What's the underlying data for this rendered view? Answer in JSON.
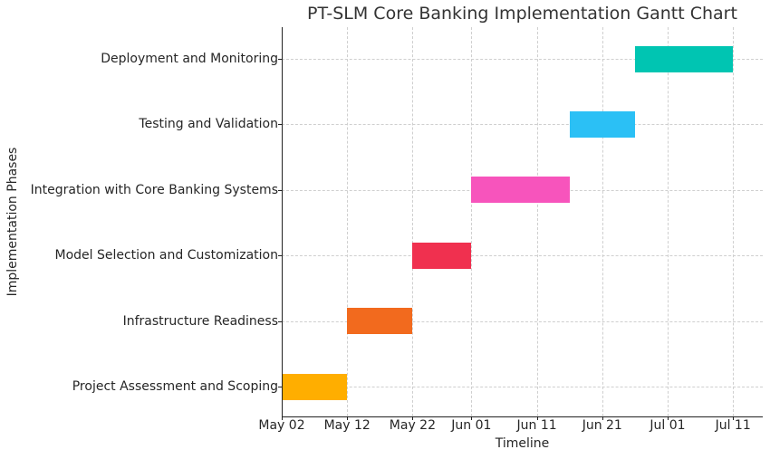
{
  "chart_data": {
    "type": "bar",
    "subtype": "gantt",
    "title": "PT-SLM Core Banking Implementation Gantt Chart",
    "xlabel": "Timeline",
    "ylabel": "Implementation Phases",
    "x_ticks": [
      "May 02",
      "May 12",
      "May 22",
      "Jun 01",
      "Jun 11",
      "Jun 21",
      "Jul 01",
      "Jul 11"
    ],
    "xlim": [
      "May 02",
      "Jul 15"
    ],
    "grid": true,
    "legend": null,
    "tasks": [
      {
        "name": "Project Assessment and Scoping",
        "start": "May 02",
        "end": "May 12",
        "duration_days": 10,
        "color": "#FFAE00"
      },
      {
        "name": "Infrastructure Readiness",
        "start": "May 12",
        "end": "May 22",
        "duration_days": 10,
        "color": "#F26A1E"
      },
      {
        "name": "Model Selection and Customization",
        "start": "May 22",
        "end": "Jun 01",
        "duration_days": 10,
        "color": "#F0304F"
      },
      {
        "name": "Integration with Core Banking Systems",
        "start": "Jun 01",
        "end": "Jun 16",
        "duration_days": 15,
        "color": "#F754BC"
      },
      {
        "name": "Testing and Validation",
        "start": "Jun 16",
        "end": "Jun 26",
        "duration_days": 10,
        "color": "#2BC0F5"
      },
      {
        "name": "Deployment and Monitoring",
        "start": "Jun 26",
        "end": "Jul 11",
        "duration_days": 15,
        "color": "#00C5B2"
      }
    ]
  }
}
